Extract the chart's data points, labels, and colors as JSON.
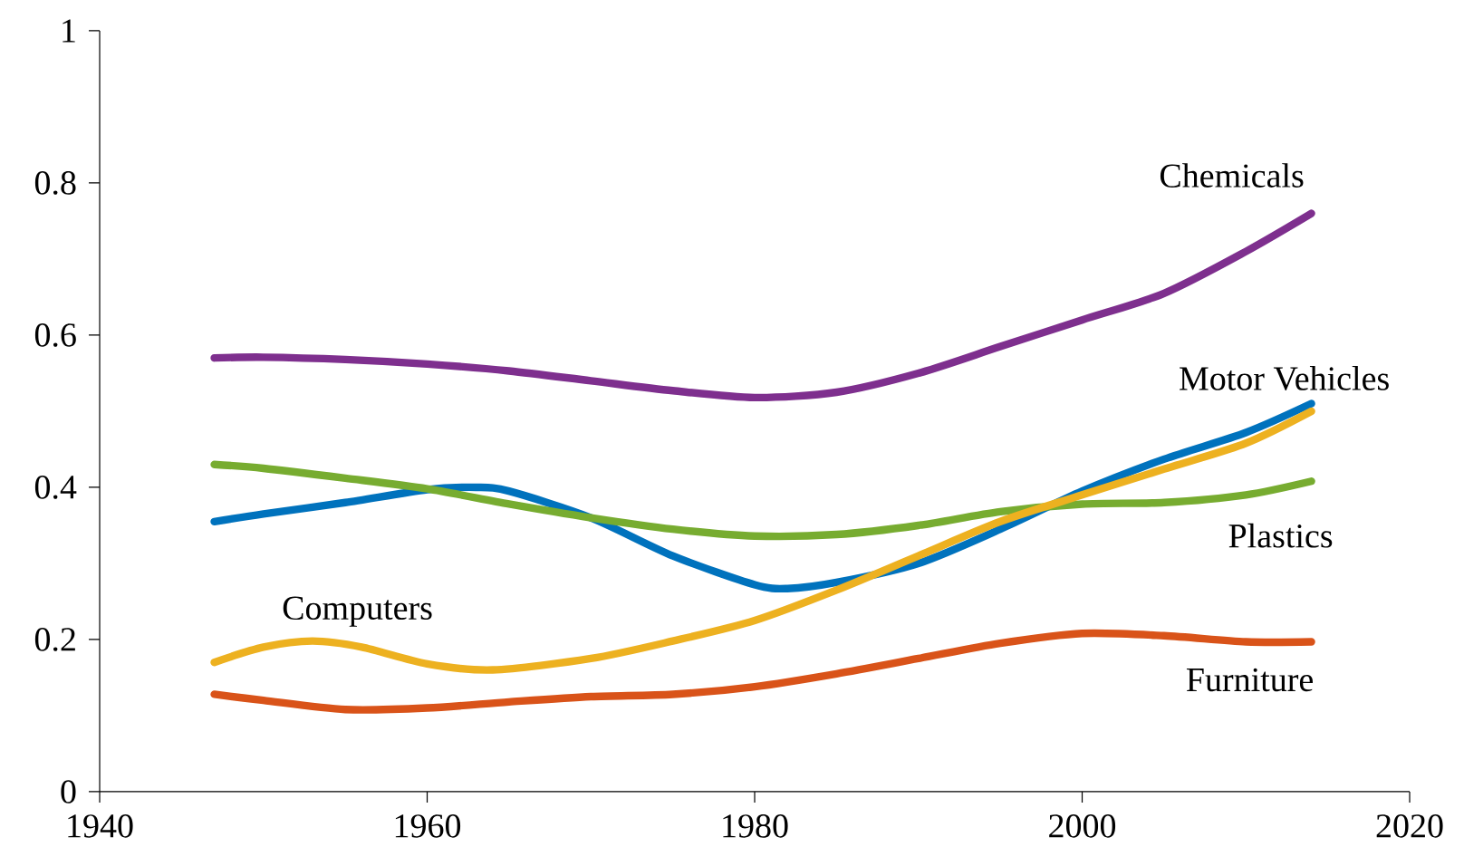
{
  "chart_data": {
    "type": "line",
    "xlim": [
      1940,
      2020
    ],
    "xticks": [
      1940,
      1960,
      1980,
      2000,
      2020
    ],
    "ylim": [
      0,
      1
    ],
    "yticks": [
      0,
      0.2,
      0.4,
      0.6,
      0.8,
      1
    ],
    "series": [
      {
        "name": "Chemicals",
        "color": "#7e2f8e",
        "x": [
          1947,
          1950,
          1955,
          1960,
          1965,
          1970,
          1975,
          1980,
          1985,
          1990,
          1995,
          2000,
          2005,
          2010,
          2014
        ],
        "values": [
          0.57,
          0.571,
          0.568,
          0.562,
          0.553,
          0.54,
          0.527,
          0.518,
          0.525,
          0.55,
          0.585,
          0.62,
          0.655,
          0.71,
          0.76
        ]
      },
      {
        "name": "Motor Vehicles",
        "color": "#0072bd",
        "x": [
          1947,
          1950,
          1955,
          1960,
          1963,
          1965,
          1970,
          1975,
          1980,
          1982,
          1985,
          1990,
          1995,
          2000,
          2005,
          2010,
          2014
        ],
        "values": [
          0.355,
          0.365,
          0.38,
          0.397,
          0.4,
          0.395,
          0.36,
          0.31,
          0.272,
          0.267,
          0.275,
          0.3,
          0.345,
          0.395,
          0.437,
          0.472,
          0.51
        ]
      },
      {
        "name": "Plastics",
        "color": "#77ac30",
        "x": [
          1947,
          1950,
          1955,
          1960,
          1965,
          1970,
          1975,
          1980,
          1985,
          1990,
          1995,
          2000,
          2005,
          2010,
          2014
        ],
        "values": [
          0.43,
          0.425,
          0.412,
          0.398,
          0.378,
          0.36,
          0.345,
          0.336,
          0.338,
          0.35,
          0.368,
          0.378,
          0.38,
          0.39,
          0.408
        ]
      },
      {
        "name": "Computers",
        "color": "#edb120",
        "x": [
          1947,
          1950,
          1953,
          1956,
          1960,
          1964,
          1970,
          1975,
          1980,
          1985,
          1990,
          1995,
          2000,
          2005,
          2010,
          2014
        ],
        "values": [
          0.17,
          0.19,
          0.198,
          0.19,
          0.168,
          0.16,
          0.175,
          0.198,
          0.225,
          0.265,
          0.31,
          0.355,
          0.39,
          0.424,
          0.458,
          0.5
        ]
      },
      {
        "name": "Furniture",
        "color": "#d95319",
        "x": [
          1947,
          1950,
          1955,
          1960,
          1965,
          1970,
          1975,
          1980,
          1985,
          1990,
          1995,
          2000,
          2005,
          2010,
          2014
        ],
        "values": [
          0.128,
          0.12,
          0.108,
          0.11,
          0.118,
          0.125,
          0.128,
          0.138,
          0.155,
          0.175,
          0.195,
          0.208,
          0.205,
          0.197,
          0.197
        ]
      }
    ]
  }
}
